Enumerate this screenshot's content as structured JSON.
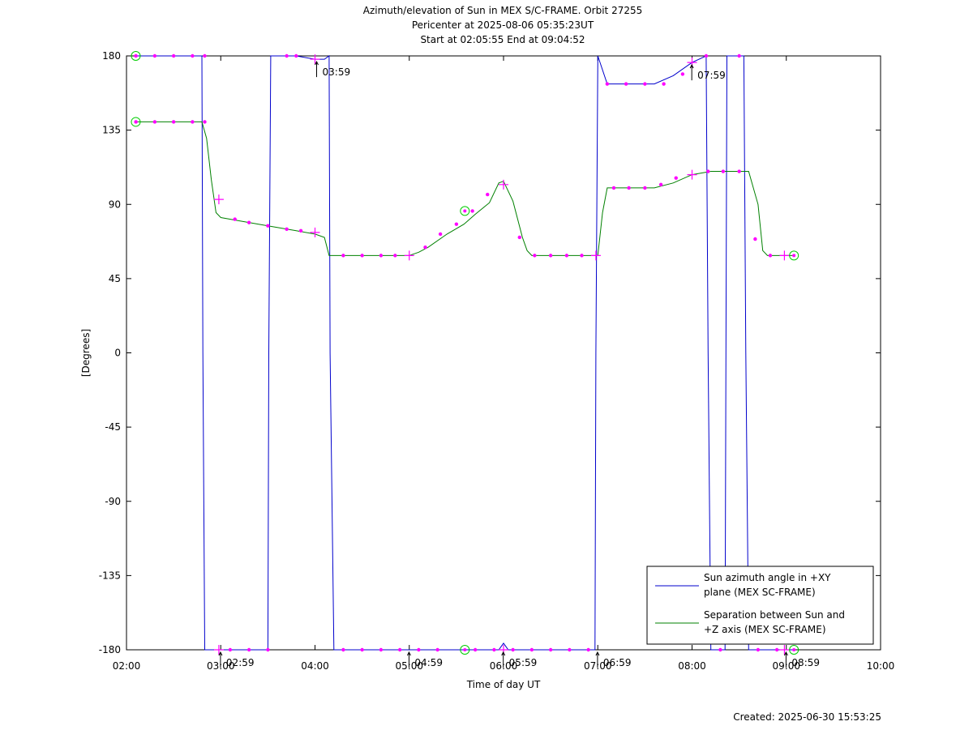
{
  "chart_data": {
    "type": "line",
    "title_lines": [
      "Azimuth/elevation of Sun in MEX S/C-FRAME.  Orbit 27255",
      "Pericenter at 2025-08-06 05:35:23UT",
      "Start at 02:05:55 End at 09:04:52"
    ],
    "xlabel": "Time of day UT",
    "ylabel": "[Degrees]",
    "xlim": [
      2,
      10
    ],
    "ylim": [
      -180,
      180
    ],
    "x_ticks": [
      {
        "v": 2,
        "label": "02:00"
      },
      {
        "v": 3,
        "label": "03:00"
      },
      {
        "v": 4,
        "label": "04:00"
      },
      {
        "v": 5,
        "label": "05:00"
      },
      {
        "v": 6,
        "label": "06:00"
      },
      {
        "v": 7,
        "label": "07:00"
      },
      {
        "v": 8,
        "label": "08:00"
      },
      {
        "v": 9,
        "label": "09:00"
      },
      {
        "v": 10,
        "label": "10:00"
      }
    ],
    "y_ticks": [
      {
        "v": 180,
        "label": "180"
      },
      {
        "v": 135,
        "label": "135"
      },
      {
        "v": 90,
        "label": "90"
      },
      {
        "v": 45,
        "label": "45"
      },
      {
        "v": 0,
        "label": "0"
      },
      {
        "v": -45,
        "label": "-45"
      },
      {
        "v": -90,
        "label": "-90"
      },
      {
        "v": -135,
        "label": "-135"
      },
      {
        "v": -180,
        "label": "-180"
      }
    ],
    "legend": {
      "placement": "bottom-right",
      "entries": [
        {
          "series": 0,
          "lines": [
            "Sun azimuth angle in +XY",
            "plane (MEX SC-FRAME)"
          ]
        },
        {
          "series": 1,
          "lines": [
            "Separation between Sun and",
            "+Z axis (MEX SC-FRAME)"
          ]
        }
      ]
    },
    "series": [
      {
        "color": "#0000cc",
        "x": [
          2.0986,
          2.8,
          2.81,
          2.83,
          2.9,
          3.0,
          3.2,
          3.5,
          3.51,
          3.53,
          3.6,
          3.8,
          4.0,
          4.1,
          4.15,
          4.16,
          4.2,
          4.5,
          5.0,
          5.5,
          5.95,
          6.0,
          6.05,
          6.5,
          6.97,
          6.98,
          7.0,
          7.1,
          7.3,
          7.6,
          7.8,
          8.0,
          8.15,
          8.17,
          8.2,
          8.35,
          8.36,
          8.37,
          8.5,
          8.55,
          8.57,
          8.6,
          8.8,
          9.0,
          9.0811
        ],
        "y": [
          180,
          180,
          0,
          -180,
          -180,
          -180,
          -180,
          -180,
          0,
          180,
          180,
          180,
          178,
          178,
          180,
          0,
          -180,
          -180,
          -180,
          -180,
          -180,
          -176,
          -180,
          -180,
          -180,
          0,
          180,
          163,
          163,
          163,
          168,
          176,
          180,
          0,
          -180,
          -180,
          0,
          180,
          180,
          180,
          0,
          -180,
          -180,
          -180,
          -180
        ]
      },
      {
        "color": "#008000",
        "x": [
          2.0986,
          2.3,
          2.5,
          2.7,
          2.8,
          2.85,
          2.9,
          2.95,
          3.0,
          3.2,
          3.5,
          3.8,
          4.0,
          4.1,
          4.15,
          4.2,
          4.5,
          5.0,
          5.1,
          5.2,
          5.4,
          5.58,
          5.7,
          5.85,
          5.95,
          6.0,
          6.1,
          6.2,
          6.25,
          6.3,
          6.6,
          6.97,
          7.0,
          7.05,
          7.1,
          7.3,
          7.6,
          7.8,
          8.0,
          8.2,
          8.55,
          8.6,
          8.7,
          8.75,
          8.8,
          9.0,
          9.0811
        ],
        "y": [
          140,
          140,
          140,
          140,
          140,
          130,
          105,
          85,
          82,
          80,
          77,
          74,
          72,
          70,
          59,
          59,
          59,
          59,
          61,
          64,
          72,
          78,
          84,
          91,
          103,
          104,
          92,
          70,
          62,
          59,
          59,
          59,
          59,
          85,
          100,
          100,
          100,
          103,
          108,
          110,
          110,
          110,
          90,
          62,
          59,
          59,
          59
        ]
      }
    ],
    "dot_markers": [
      {
        "x": 2.1,
        "y": 180
      },
      {
        "x": 2.3,
        "y": 180
      },
      {
        "x": 2.5,
        "y": 180
      },
      {
        "x": 2.7,
        "y": 180
      },
      {
        "x": 2.83,
        "y": 180
      },
      {
        "x": 3.1,
        "y": -180
      },
      {
        "x": 3.3,
        "y": -180
      },
      {
        "x": 3.5,
        "y": -180
      },
      {
        "x": 3.7,
        "y": 180
      },
      {
        "x": 3.8,
        "y": 180
      },
      {
        "x": 4.3,
        "y": -180
      },
      {
        "x": 4.5,
        "y": -180
      },
      {
        "x": 4.7,
        "y": -180
      },
      {
        "x": 4.9,
        "y": -180
      },
      {
        "x": 5.1,
        "y": -180
      },
      {
        "x": 5.3,
        "y": -180
      },
      {
        "x": 5.7,
        "y": -180
      },
      {
        "x": 5.9,
        "y": -180
      },
      {
        "x": 6.1,
        "y": -180
      },
      {
        "x": 6.3,
        "y": -180
      },
      {
        "x": 6.5,
        "y": -180
      },
      {
        "x": 6.7,
        "y": -180
      },
      {
        "x": 6.9,
        "y": -180
      },
      {
        "x": 7.1,
        "y": 163
      },
      {
        "x": 7.3,
        "y": 163
      },
      {
        "x": 7.5,
        "y": 163
      },
      {
        "x": 7.7,
        "y": 163
      },
      {
        "x": 7.9,
        "y": 169
      },
      {
        "x": 8.15,
        "y": 180
      },
      {
        "x": 8.5,
        "y": 180
      },
      {
        "x": 8.3,
        "y": -180
      },
      {
        "x": 8.7,
        "y": -180
      },
      {
        "x": 8.9,
        "y": -180
      },
      {
        "x": 2.1,
        "y": 140
      },
      {
        "x": 2.3,
        "y": 140
      },
      {
        "x": 2.5,
        "y": 140
      },
      {
        "x": 2.7,
        "y": 140
      },
      {
        "x": 2.83,
        "y": 140
      },
      {
        "x": 3.15,
        "y": 81
      },
      {
        "x": 3.3,
        "y": 79
      },
      {
        "x": 3.5,
        "y": 77
      },
      {
        "x": 3.7,
        "y": 75
      },
      {
        "x": 3.85,
        "y": 74
      },
      {
        "x": 4.3,
        "y": 59
      },
      {
        "x": 4.5,
        "y": 59
      },
      {
        "x": 4.7,
        "y": 59
      },
      {
        "x": 4.85,
        "y": 59
      },
      {
        "x": 5.17,
        "y": 64
      },
      {
        "x": 5.33,
        "y": 72
      },
      {
        "x": 5.5,
        "y": 78
      },
      {
        "x": 5.67,
        "y": 86
      },
      {
        "x": 5.83,
        "y": 96
      },
      {
        "x": 6.17,
        "y": 70
      },
      {
        "x": 6.33,
        "y": 59
      },
      {
        "x": 6.5,
        "y": 59
      },
      {
        "x": 6.67,
        "y": 59
      },
      {
        "x": 6.83,
        "y": 59
      },
      {
        "x": 7.17,
        "y": 100
      },
      {
        "x": 7.33,
        "y": 100
      },
      {
        "x": 7.5,
        "y": 100
      },
      {
        "x": 7.67,
        "y": 102
      },
      {
        "x": 7.83,
        "y": 106
      },
      {
        "x": 8.17,
        "y": 110
      },
      {
        "x": 8.33,
        "y": 110
      },
      {
        "x": 8.5,
        "y": 110
      },
      {
        "x": 8.67,
        "y": 69
      },
      {
        "x": 8.83,
        "y": 59
      }
    ],
    "cross_markers": [
      {
        "x": 4.0,
        "y": 178
      },
      {
        "x": 8.0,
        "y": 176
      },
      {
        "x": 2.98,
        "y": -180
      },
      {
        "x": 6.0,
        "y": -180
      },
      {
        "x": 8.98,
        "y": -180
      },
      {
        "x": 2.98,
        "y": 93
      },
      {
        "x": 4.0,
        "y": 73
      },
      {
        "x": 5.0,
        "y": 59
      },
      {
        "x": 6.0,
        "y": 102
      },
      {
        "x": 6.98,
        "y": 59
      },
      {
        "x": 8.0,
        "y": 108
      },
      {
        "x": 8.98,
        "y": 59
      }
    ],
    "circle_markers": [
      {
        "x": 2.0986,
        "y": 180
      },
      {
        "x": 2.0986,
        "y": 140
      },
      {
        "x": 5.5897,
        "y": 86
      },
      {
        "x": 5.5897,
        "y": -180
      },
      {
        "x": 9.0811,
        "y": 59
      },
      {
        "x": 9.0811,
        "y": -180
      }
    ],
    "annotations": [
      {
        "x": 4.0,
        "y": 178,
        "text": "03:59"
      },
      {
        "x": 7.98,
        "y": 176,
        "text": "07:59"
      },
      {
        "x": 2.98,
        "y": -180,
        "text": "02:59"
      },
      {
        "x": 4.98,
        "y": -180,
        "text": "04:59"
      },
      {
        "x": 5.98,
        "y": -180,
        "text": "05:59"
      },
      {
        "x": 6.98,
        "y": -180,
        "text": "06:59"
      },
      {
        "x": 8.98,
        "y": -180,
        "text": "08:59"
      }
    ]
  },
  "footer": {
    "created": "Created: 2025-06-30 15:53:25"
  }
}
